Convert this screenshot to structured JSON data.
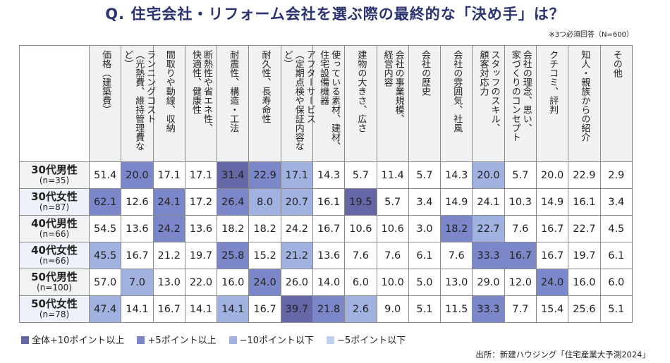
{
  "title": "Q. 住宅会社・リフォーム会社を選ぶ際の最終的な「決め手」は？",
  "note": "※3つ必須回答（N=600）",
  "source": "出所：新建ハウジング「住宅産業大予測2024」",
  "colors": {
    "D": "#6466a6",
    "M": "#7b87c8",
    "L": "#a1b1e0",
    "LL": "#bcd0f0"
  },
  "legend": [
    {
      "key": "D",
      "label": "全体+10ポイント以上"
    },
    {
      "key": "M",
      "label": "+5ポイント以上"
    },
    {
      "key": "L",
      "label": "−10ポイント以下"
    },
    {
      "key": "LL",
      "label": "−5ポイント以下"
    }
  ],
  "chart_data": {
    "type": "table",
    "title": "Q. 住宅会社・リフォーム会社を選ぶ際の最終的な「決め手」は？",
    "columns": [
      "価格（建築費）",
      "ランニングコスト\n（光熱費、維持管理費など）",
      "間取りや動線、収納",
      "断熱性や省エネ性、\n快適性、健康性",
      "耐震性、構造・工法",
      "耐久性、長寿命性",
      "アフターサービス\n（定期点検や保証内容など）",
      "使っている素材、建材、\n住宅設備機器",
      "建物の大きさ、広さ",
      "会社の事業規模、\n経営内容",
      "会社の歴史",
      "会社の雰囲気、社風",
      "スタッフのスキル、\n顧客対応力",
      "会社の理念、思い、\n家づくりのコンセプト",
      "クチコミ、評判",
      "知人・親族からの紹介",
      "その他"
    ],
    "rows": [
      {
        "label": "30代男性",
        "n": "(n=35)",
        "values": [
          51.4,
          20.0,
          17.1,
          17.1,
          31.4,
          22.9,
          17.1,
          14.3,
          5.7,
          11.4,
          5.7,
          14.3,
          20.0,
          5.7,
          20.0,
          22.9,
          2.9
        ],
        "highlight": [
          "",
          "M",
          "",
          "",
          "D",
          "M",
          "L",
          "",
          "",
          "",
          "",
          "",
          "L",
          "",
          "",
          "",
          ""
        ]
      },
      {
        "label": "30代女性",
        "n": "(n=87)",
        "values": [
          62.1,
          12.6,
          24.1,
          17.2,
          26.4,
          8.0,
          20.7,
          16.1,
          19.5,
          5.7,
          3.4,
          14.9,
          24.1,
          10.3,
          14.9,
          16.1,
          3.4
        ],
        "highlight": [
          "M",
          "",
          "M",
          "",
          "M",
          "L",
          "L",
          "",
          "D",
          "",
          "",
          "",
          "",
          "",
          "",
          "",
          ""
        ]
      },
      {
        "label": "40代男性",
        "n": "(n=66)",
        "values": [
          54.5,
          13.6,
          24.2,
          13.6,
          18.2,
          18.2,
          24.2,
          16.7,
          10.6,
          10.6,
          3.0,
          18.2,
          22.7,
          7.6,
          16.7,
          22.7,
          4.5
        ],
        "highlight": [
          "",
          "",
          "M",
          "",
          "",
          "",
          "",
          "",
          "",
          "",
          "",
          "M",
          "L",
          "",
          "",
          "",
          ""
        ]
      },
      {
        "label": "40代女性",
        "n": "(n=66)",
        "values": [
          45.5,
          16.7,
          21.2,
          19.7,
          25.8,
          15.2,
          21.2,
          13.6,
          7.6,
          7.6,
          6.1,
          7.6,
          33.3,
          16.7,
          16.7,
          19.7,
          6.1
        ],
        "highlight": [
          "L",
          "",
          "",
          "",
          "M",
          "",
          "L",
          "",
          "",
          "",
          "",
          "",
          "M",
          "M",
          "",
          "",
          ""
        ]
      },
      {
        "label": "50代男性",
        "n": "(n=100)",
        "values": [
          57.0,
          7.0,
          13.0,
          22.0,
          16.0,
          24.0,
          26.0,
          14.0,
          6.0,
          10.0,
          5.0,
          13.0,
          29.0,
          12.0,
          24.0,
          16.0,
          6.0
        ],
        "highlight": [
          "",
          "L",
          "",
          "",
          "",
          "M",
          "",
          "",
          "",
          "",
          "",
          "",
          "",
          "",
          "M",
          "",
          ""
        ]
      },
      {
        "label": "50代女性",
        "n": "(n=78)",
        "values": [
          47.4,
          14.1,
          16.7,
          14.1,
          14.1,
          16.7,
          39.7,
          21.8,
          2.6,
          9.0,
          5.1,
          11.5,
          33.3,
          7.7,
          15.4,
          25.6,
          5.1
        ],
        "highlight": [
          "L",
          "",
          "",
          "",
          "L",
          "",
          "D",
          "M",
          "L",
          "",
          "",
          "",
          "M",
          "",
          "",
          "",
          ""
        ]
      }
    ]
  }
}
